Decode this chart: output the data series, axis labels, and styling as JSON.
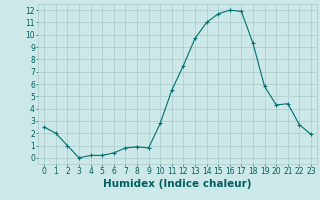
{
  "x": [
    0,
    1,
    2,
    3,
    4,
    5,
    6,
    7,
    8,
    9,
    10,
    11,
    12,
    13,
    14,
    15,
    16,
    17,
    18,
    19,
    20,
    21,
    22,
    23
  ],
  "y": [
    2.5,
    2.0,
    1.0,
    0.0,
    0.2,
    0.2,
    0.4,
    0.8,
    0.9,
    0.8,
    2.8,
    5.5,
    7.5,
    9.7,
    11.0,
    11.7,
    12.0,
    11.9,
    9.3,
    5.8,
    4.3,
    4.4,
    2.7,
    1.9
  ],
  "line_color": "#007070",
  "marker": "+",
  "marker_size": 3,
  "marker_color": "#007070",
  "bg_color": "#cce8e8",
  "grid_color": "#aacccc",
  "xlabel": "Humidex (Indice chaleur)",
  "xlim": [
    -0.5,
    23.5
  ],
  "ylim": [
    -0.5,
    12.5
  ],
  "yticks": [
    0,
    1,
    2,
    3,
    4,
    5,
    6,
    7,
    8,
    9,
    10,
    11,
    12
  ],
  "xticks": [
    0,
    1,
    2,
    3,
    4,
    5,
    6,
    7,
    8,
    9,
    10,
    11,
    12,
    13,
    14,
    15,
    16,
    17,
    18,
    19,
    20,
    21,
    22,
    23
  ],
  "tick_color": "#006060",
  "tick_fontsize": 5.5,
  "xlabel_fontsize": 7.5,
  "xlabel_color": "#006060",
  "label_fontweight": "bold"
}
